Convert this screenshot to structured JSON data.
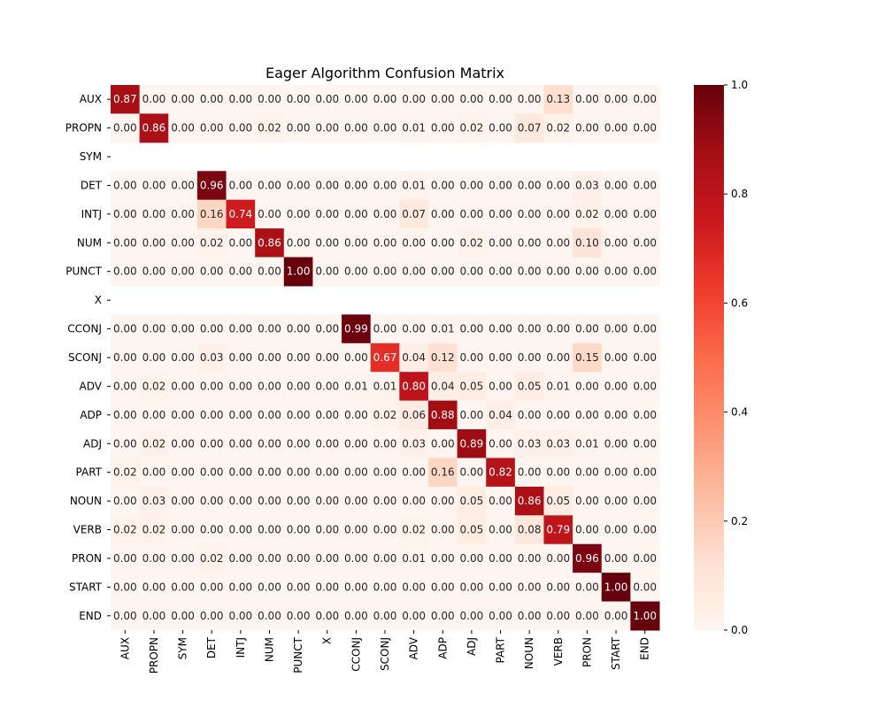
{
  "chart_data": {
    "type": "heatmap",
    "title": "Eager Algorithm Confusion Matrix",
    "xlabel": "",
    "ylabel": "",
    "x_labels": [
      "AUX",
      "PROPN",
      "SYM",
      "DET",
      "INTJ",
      "NUM",
      "PUNCT",
      "X",
      "CCONJ",
      "SCONJ",
      "ADV",
      "ADP",
      "ADJ",
      "PART",
      "NOUN",
      "VERB",
      "PRON",
      "START",
      "END"
    ],
    "y_labels": [
      "AUX",
      "PROPN",
      "SYM",
      "DET",
      "INTJ",
      "NUM",
      "PUNCT",
      "X",
      "CCONJ",
      "SCONJ",
      "ADV",
      "ADP",
      "ADJ",
      "PART",
      "NOUN",
      "VERB",
      "PRON",
      "START",
      "END"
    ],
    "values": [
      [
        0.87,
        0.0,
        0.0,
        0.0,
        0.0,
        0.0,
        0.0,
        0.0,
        0.0,
        0.0,
        0.0,
        0.0,
        0.0,
        0.0,
        0.0,
        0.13,
        0.0,
        0.0,
        0.0
      ],
      [
        0.0,
        0.86,
        0.0,
        0.0,
        0.0,
        0.02,
        0.0,
        0.0,
        0.0,
        0.0,
        0.01,
        0.0,
        0.02,
        0.0,
        0.07,
        0.02,
        0.0,
        0.0,
        0.0
      ],
      [
        null,
        null,
        null,
        null,
        null,
        null,
        null,
        null,
        null,
        null,
        null,
        null,
        null,
        null,
        null,
        null,
        null,
        null,
        null
      ],
      [
        0.0,
        0.0,
        0.0,
        0.96,
        0.0,
        0.0,
        0.0,
        0.0,
        0.0,
        0.0,
        0.01,
        0.0,
        0.0,
        0.0,
        0.0,
        0.0,
        0.03,
        0.0,
        0.0
      ],
      [
        0.0,
        0.0,
        0.0,
        0.16,
        0.74,
        0.0,
        0.0,
        0.0,
        0.0,
        0.0,
        0.07,
        0.0,
        0.0,
        0.0,
        0.0,
        0.0,
        0.02,
        0.0,
        0.0
      ],
      [
        0.0,
        0.0,
        0.0,
        0.02,
        0.0,
        0.86,
        0.0,
        0.0,
        0.0,
        0.0,
        0.0,
        0.0,
        0.02,
        0.0,
        0.0,
        0.0,
        0.1,
        0.0,
        0.0
      ],
      [
        0.0,
        0.0,
        0.0,
        0.0,
        0.0,
        0.0,
        1.0,
        0.0,
        0.0,
        0.0,
        0.0,
        0.0,
        0.0,
        0.0,
        0.0,
        0.0,
        0.0,
        0.0,
        0.0
      ],
      [
        null,
        null,
        null,
        null,
        null,
        null,
        null,
        null,
        null,
        null,
        null,
        null,
        null,
        null,
        null,
        null,
        null,
        null,
        null
      ],
      [
        0.0,
        0.0,
        0.0,
        0.0,
        0.0,
        0.0,
        0.0,
        0.0,
        0.99,
        0.0,
        0.0,
        0.01,
        0.0,
        0.0,
        0.0,
        0.0,
        0.0,
        0.0,
        0.0
      ],
      [
        0.0,
        0.0,
        0.0,
        0.03,
        0.0,
        0.0,
        0.0,
        0.0,
        0.0,
        0.67,
        0.04,
        0.12,
        0.0,
        0.0,
        0.0,
        0.0,
        0.15,
        0.0,
        0.0
      ],
      [
        0.0,
        0.02,
        0.0,
        0.0,
        0.0,
        0.0,
        0.0,
        0.0,
        0.01,
        0.01,
        0.8,
        0.04,
        0.05,
        0.0,
        0.05,
        0.01,
        0.0,
        0.0,
        0.0
      ],
      [
        0.0,
        0.0,
        0.0,
        0.0,
        0.0,
        0.0,
        0.0,
        0.0,
        0.0,
        0.02,
        0.06,
        0.88,
        0.0,
        0.04,
        0.0,
        0.0,
        0.0,
        0.0,
        0.0
      ],
      [
        0.0,
        0.02,
        0.0,
        0.0,
        0.0,
        0.0,
        0.0,
        0.0,
        0.0,
        0.0,
        0.03,
        0.0,
        0.89,
        0.0,
        0.03,
        0.03,
        0.01,
        0.0,
        0.0
      ],
      [
        0.02,
        0.0,
        0.0,
        0.0,
        0.0,
        0.0,
        0.0,
        0.0,
        0.0,
        0.0,
        0.0,
        0.16,
        0.0,
        0.82,
        0.0,
        0.0,
        0.0,
        0.0,
        0.0
      ],
      [
        0.0,
        0.03,
        0.0,
        0.0,
        0.0,
        0.0,
        0.0,
        0.0,
        0.0,
        0.0,
        0.0,
        0.0,
        0.05,
        0.0,
        0.86,
        0.05,
        0.0,
        0.0,
        0.0
      ],
      [
        0.02,
        0.02,
        0.0,
        0.0,
        0.0,
        0.0,
        0.0,
        0.0,
        0.0,
        0.0,
        0.02,
        0.0,
        0.05,
        0.0,
        0.08,
        0.79,
        0.0,
        0.0,
        0.0
      ],
      [
        0.0,
        0.0,
        0.0,
        0.02,
        0.0,
        0.0,
        0.0,
        0.0,
        0.0,
        0.0,
        0.01,
        0.0,
        0.0,
        0.0,
        0.0,
        0.0,
        0.96,
        0.0,
        0.0
      ],
      [
        0.0,
        0.0,
        0.0,
        0.0,
        0.0,
        0.0,
        0.0,
        0.0,
        0.0,
        0.0,
        0.0,
        0.0,
        0.0,
        0.0,
        0.0,
        0.0,
        0.0,
        1.0,
        0.0
      ],
      [
        0.0,
        0.0,
        0.0,
        0.0,
        0.0,
        0.0,
        0.0,
        0.0,
        0.0,
        0.0,
        0.0,
        0.0,
        0.0,
        0.0,
        0.0,
        0.0,
        0.0,
        0.0,
        1.0
      ]
    ],
    "value_format": "2 decimals",
    "colormap": "Reds",
    "vmin": 0,
    "vmax": 1,
    "colorbar_ticks": [
      "0.0",
      "0.2",
      "0.4",
      "0.6",
      "0.8",
      "1.0"
    ],
    "colorbar_tick_values": [
      0,
      0.2,
      0.4,
      0.6,
      0.8,
      1.0
    ],
    "missing_row_marker": "-",
    "legend": "colorbar right"
  }
}
